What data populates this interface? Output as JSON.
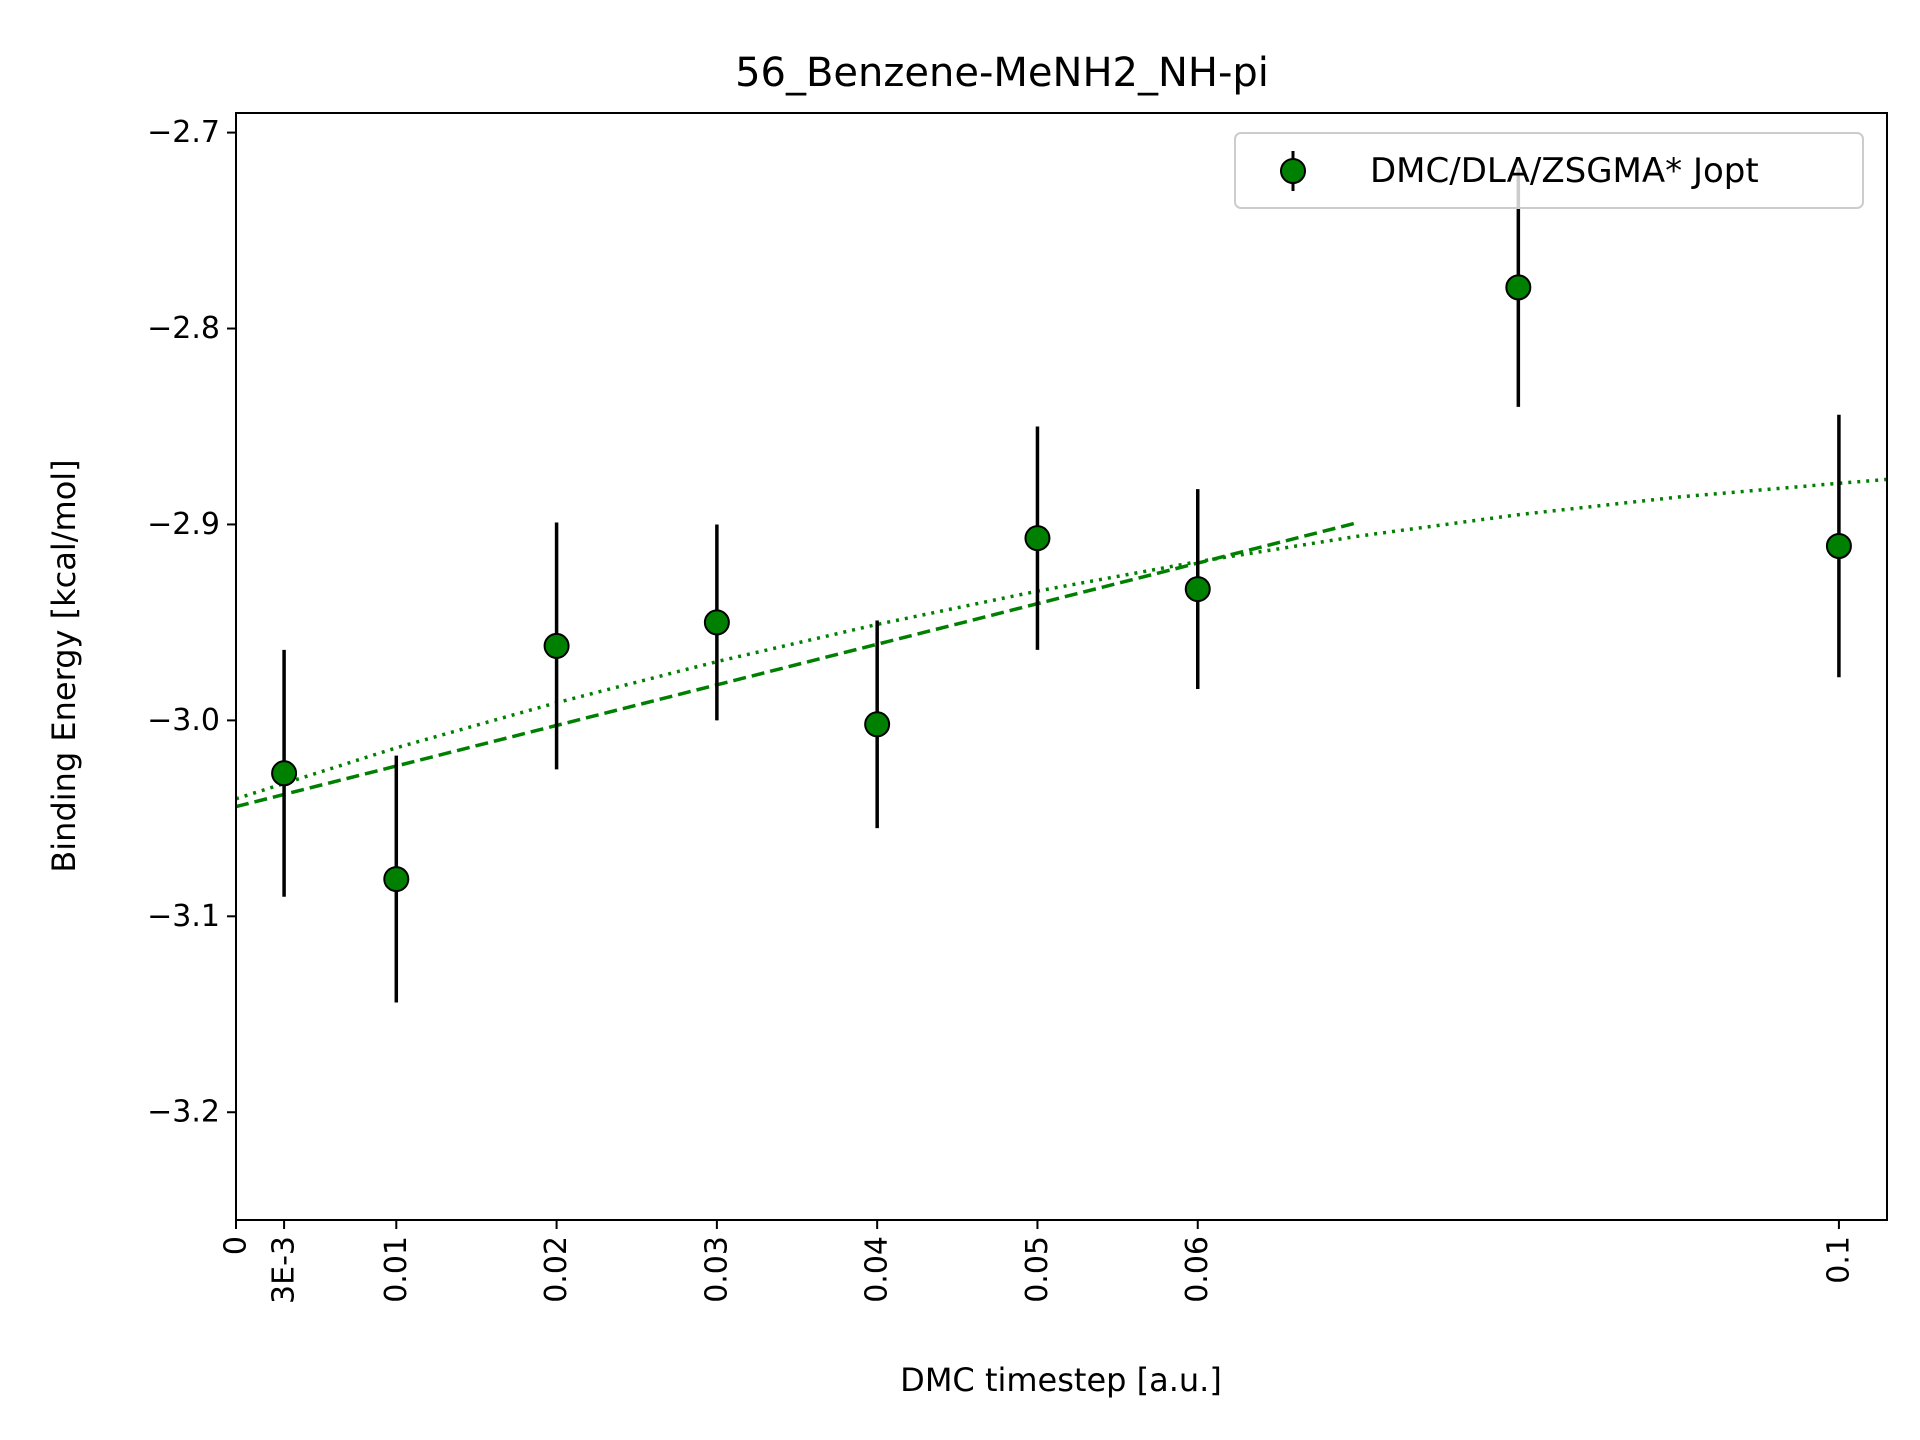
{
  "chart_data": {
    "type": "scatter",
    "title": "56_Benzene-MeNH2_NH-pi",
    "xlabel": "DMC timestep [a.u.]",
    "ylabel": "Binding Energy [kcal/mol]",
    "xlim": [
      0,
      0.103
    ],
    "ylim": [
      -3.255,
      -2.69
    ],
    "xticks": [
      {
        "value": 0,
        "label": "0"
      },
      {
        "value": 0.003,
        "label": "3E-3"
      },
      {
        "value": 0.01,
        "label": "0.01"
      },
      {
        "value": 0.02,
        "label": "0.02"
      },
      {
        "value": 0.03,
        "label": "0.03"
      },
      {
        "value": 0.04,
        "label": "0.04"
      },
      {
        "value": 0.05,
        "label": "0.05"
      },
      {
        "value": 0.06,
        "label": "0.06"
      },
      {
        "value": 0.1,
        "label": "0.1"
      }
    ],
    "yticks": [
      {
        "value": -2.7,
        "label": "−2.7"
      },
      {
        "value": -2.8,
        "label": "−2.8"
      },
      {
        "value": -2.9,
        "label": "−2.9"
      },
      {
        "value": -3.0,
        "label": "−3.0"
      },
      {
        "value": -3.1,
        "label": "−3.1"
      },
      {
        "value": -3.2,
        "label": "−3.2"
      }
    ],
    "grid": false,
    "legend": {
      "position": "top-right",
      "entries": [
        "DMC/DLA/ZSGMA* Jopt"
      ]
    },
    "series": [
      {
        "name": "DMC/DLA/ZSGMA* Jopt",
        "color": "#008000",
        "marker": "circle",
        "points": [
          {
            "x": 0.003,
            "y": -3.027,
            "err": 0.063
          },
          {
            "x": 0.01,
            "y": -3.081,
            "err": 0.063
          },
          {
            "x": 0.02,
            "y": -2.962,
            "err": 0.063
          },
          {
            "x": 0.03,
            "y": -2.95,
            "err": 0.05
          },
          {
            "x": 0.04,
            "y": -3.002,
            "err": 0.053
          },
          {
            "x": 0.05,
            "y": -2.907,
            "err": 0.057
          },
          {
            "x": 0.06,
            "y": -2.933,
            "err": 0.051
          },
          {
            "x": 0.08,
            "y": -2.779,
            "err": 0.061
          },
          {
            "x": 0.1,
            "y": -2.911,
            "err": 0.067
          }
        ]
      }
    ],
    "fits": [
      {
        "kind": "linear",
        "style": "dashed",
        "color": "#008000",
        "x": [
          0,
          0.07
        ],
        "y": [
          -3.044,
          -2.899
        ]
      },
      {
        "kind": "curve",
        "style": "dotted",
        "color": "#008000",
        "x": [
          0,
          0.01,
          0.02,
          0.03,
          0.04,
          0.05,
          0.06,
          0.07,
          0.08,
          0.09,
          0.1,
          0.103
        ],
        "y": [
          -3.04,
          -3.014,
          -2.991,
          -2.97,
          -2.951,
          -2.934,
          -2.919,
          -2.906,
          -2.895,
          -2.886,
          -2.879,
          -2.877
        ]
      }
    ]
  }
}
